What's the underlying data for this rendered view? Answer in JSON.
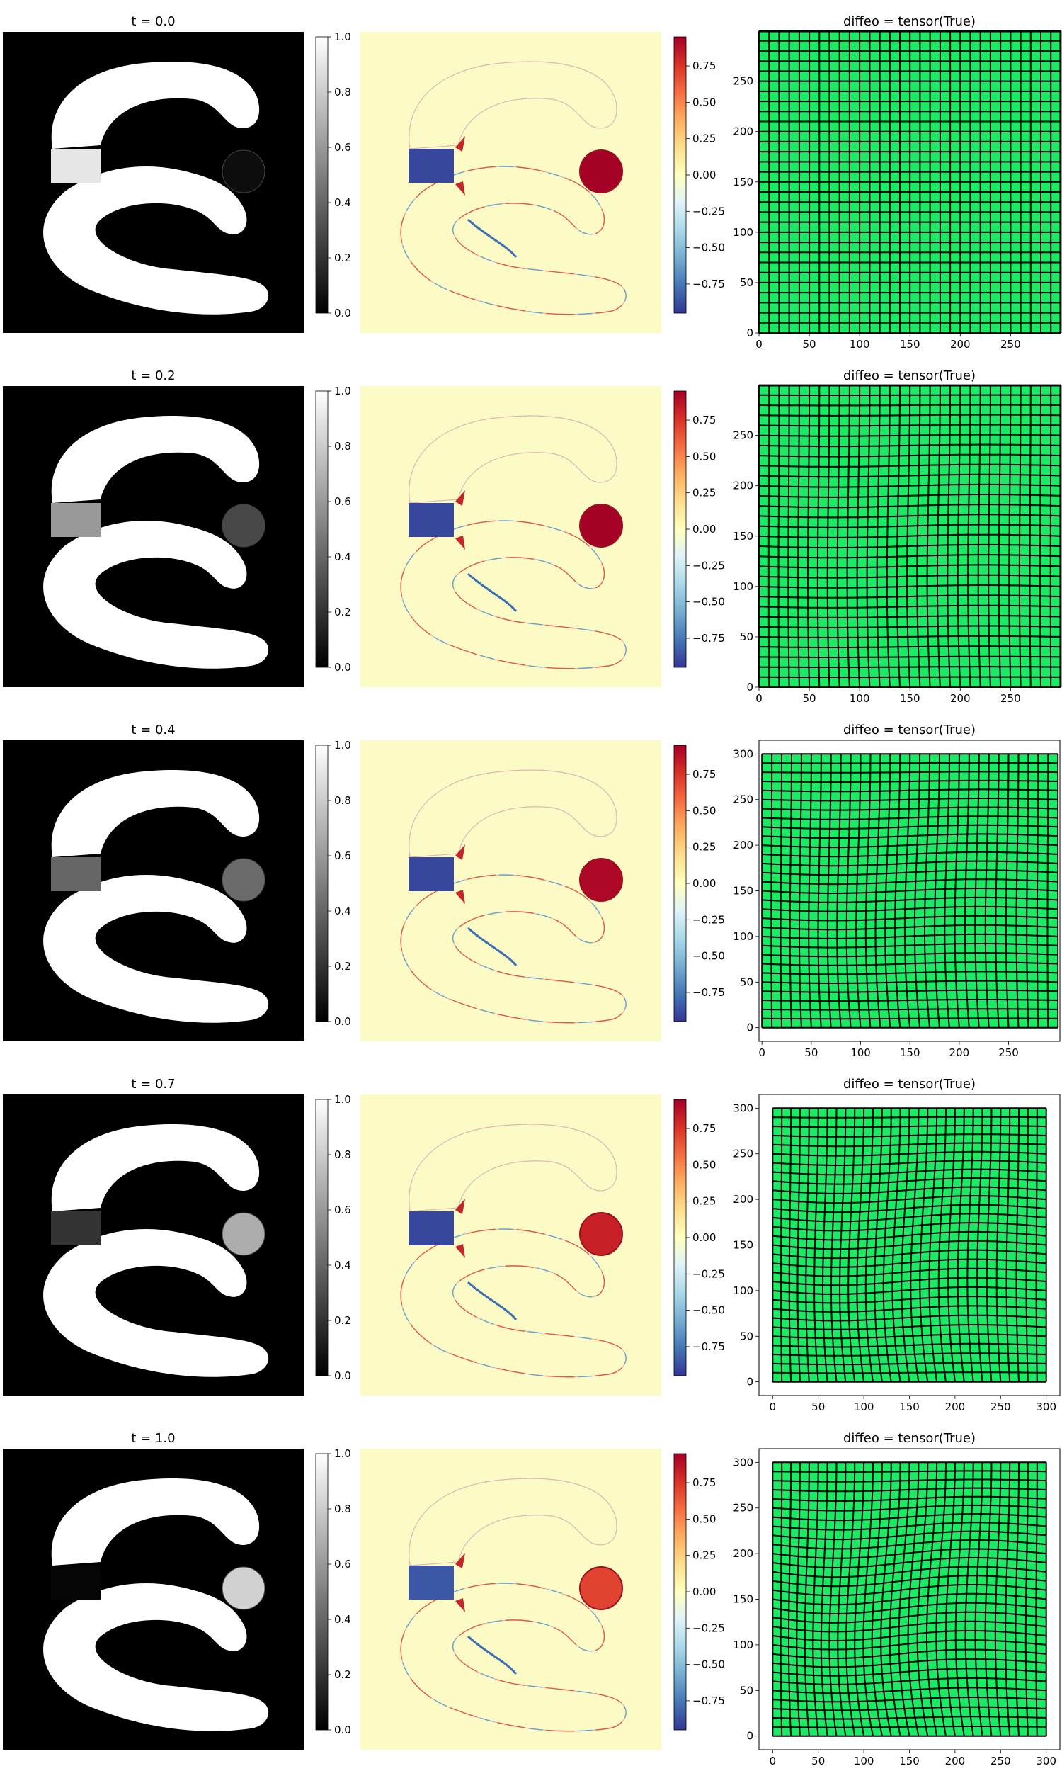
{
  "colors": {
    "grid_fill": "#19ec63",
    "grid_line": "#000000",
    "image_background": "#000000",
    "shape_white": "#ffffff",
    "diff_background": "#fdfbc5"
  },
  "chart_data": [
    {
      "type": "heatmap",
      "panel": "intensity",
      "title": "t = 0.0",
      "cmap": "gray",
      "colorbar": {
        "vmin": 0.0,
        "vmax": 1.0,
        "ticks": [
          "0.0",
          "0.2",
          "0.4",
          "0.6",
          "0.8",
          "1.0"
        ]
      },
      "bridge_intensity": 0.9,
      "circle_intensity": 0.05
    },
    {
      "type": "heatmap",
      "panel": "difference",
      "cmap": "RdYlBu_r",
      "colorbar": {
        "vmin": -0.95,
        "vmax": 0.95,
        "ticks": [
          "−0.75",
          "−0.50",
          "−0.25",
          "0.00",
          "0.25",
          "0.50",
          "0.75"
        ]
      },
      "bridge_value": -0.9,
      "circle_value": 0.95
    },
    {
      "type": "deformation_grid",
      "panel": "grid",
      "title": "diffeo = tensor(True)",
      "deformation": 0.0,
      "xlim": [
        0,
        299
      ],
      "ylim": [
        0,
        299
      ],
      "xticks": [
        0,
        50,
        100,
        150,
        200,
        250
      ],
      "yticks": [
        0,
        50,
        100,
        150,
        200,
        250
      ]
    },
    {
      "type": "heatmap",
      "panel": "intensity",
      "title": "t = 0.2",
      "cmap": "gray",
      "colorbar": {
        "vmin": 0.0,
        "vmax": 1.0,
        "ticks": [
          "0.0",
          "0.2",
          "0.4",
          "0.6",
          "0.8",
          "1.0"
        ]
      },
      "bridge_intensity": 0.6,
      "circle_intensity": 0.28
    },
    {
      "type": "heatmap",
      "panel": "difference",
      "cmap": "RdYlBu_r",
      "colorbar": {
        "vmin": -0.95,
        "vmax": 0.95,
        "ticks": [
          "−0.75",
          "−0.50",
          "−0.25",
          "0.00",
          "0.25",
          "0.50",
          "0.75"
        ]
      },
      "bridge_value": -0.9,
      "circle_value": 0.95
    },
    {
      "type": "deformation_grid",
      "panel": "grid",
      "title": "diffeo = tensor(True)",
      "deformation": 0.25,
      "xlim": [
        0,
        299
      ],
      "ylim": [
        0,
        299
      ],
      "xticks": [
        0,
        50,
        100,
        150,
        200,
        250
      ],
      "yticks": [
        0,
        50,
        100,
        150,
        200,
        250
      ]
    },
    {
      "type": "heatmap",
      "panel": "intensity",
      "title": "t = 0.4",
      "cmap": "gray",
      "colorbar": {
        "vmin": 0.0,
        "vmax": 1.0,
        "ticks": [
          "0.0",
          "0.2",
          "0.4",
          "0.6",
          "0.8",
          "1.0"
        ]
      },
      "bridge_intensity": 0.4,
      "circle_intensity": 0.42
    },
    {
      "type": "heatmap",
      "panel": "difference",
      "cmap": "RdYlBu_r",
      "colorbar": {
        "vmin": -0.95,
        "vmax": 0.95,
        "ticks": [
          "−0.75",
          "−0.50",
          "−0.25",
          "0.00",
          "0.25",
          "0.50",
          "0.75"
        ]
      },
      "bridge_value": -0.9,
      "circle_value": 0.92
    },
    {
      "type": "deformation_grid",
      "panel": "grid",
      "title": "diffeo = tensor(True)",
      "deformation": 0.45,
      "xlim": [
        -3,
        302
      ],
      "ylim": [
        -15,
        315
      ],
      "xticks": [
        0,
        50,
        100,
        150,
        200,
        250
      ],
      "yticks": [
        0,
        50,
        100,
        150,
        200,
        250,
        300
      ]
    },
    {
      "type": "heatmap",
      "panel": "intensity",
      "title": "t = 0.7",
      "cmap": "gray",
      "colorbar": {
        "vmin": 0.0,
        "vmax": 1.0,
        "ticks": [
          "0.0",
          "0.2",
          "0.4",
          "0.6",
          "0.8",
          "1.0"
        ]
      },
      "bridge_intensity": 0.2,
      "circle_intensity": 0.68
    },
    {
      "type": "heatmap",
      "panel": "difference",
      "cmap": "RdYlBu_r",
      "colorbar": {
        "vmin": -0.95,
        "vmax": 0.95,
        "ticks": [
          "−0.75",
          "−0.50",
          "−0.25",
          "0.00",
          "0.25",
          "0.50",
          "0.75"
        ]
      },
      "bridge_value": -0.9,
      "circle_value": 0.82
    },
    {
      "type": "deformation_grid",
      "panel": "grid",
      "title": "diffeo = tensor(True)",
      "deformation": 0.75,
      "xlim": [
        -15,
        315
      ],
      "ylim": [
        -15,
        315
      ],
      "xticks": [
        0,
        50,
        100,
        150,
        200,
        250,
        300
      ],
      "yticks": [
        0,
        50,
        100,
        150,
        200,
        250,
        300
      ]
    },
    {
      "type": "heatmap",
      "panel": "intensity",
      "title": "t = 1.0",
      "cmap": "gray",
      "colorbar": {
        "vmin": 0.0,
        "vmax": 1.0,
        "ticks": [
          "0.0",
          "0.2",
          "0.4",
          "0.6",
          "0.8",
          "1.0"
        ]
      },
      "bridge_intensity": 0.02,
      "circle_intensity": 0.82
    },
    {
      "type": "heatmap",
      "panel": "difference",
      "cmap": "RdYlBu_r",
      "colorbar": {
        "vmin": -0.95,
        "vmax": 0.95,
        "ticks": [
          "−0.75",
          "−0.50",
          "−0.25",
          "0.00",
          "0.25",
          "0.50",
          "0.75"
        ]
      },
      "bridge_value": -0.85,
      "circle_value": 0.7
    },
    {
      "type": "deformation_grid",
      "panel": "grid",
      "title": "diffeo = tensor(True)",
      "deformation": 1.0,
      "xlim": [
        -15,
        315
      ],
      "ylim": [
        -15,
        315
      ],
      "xticks": [
        0,
        50,
        100,
        150,
        200,
        250,
        300
      ],
      "yticks": [
        0,
        50,
        100,
        150,
        200,
        250,
        300
      ]
    }
  ]
}
